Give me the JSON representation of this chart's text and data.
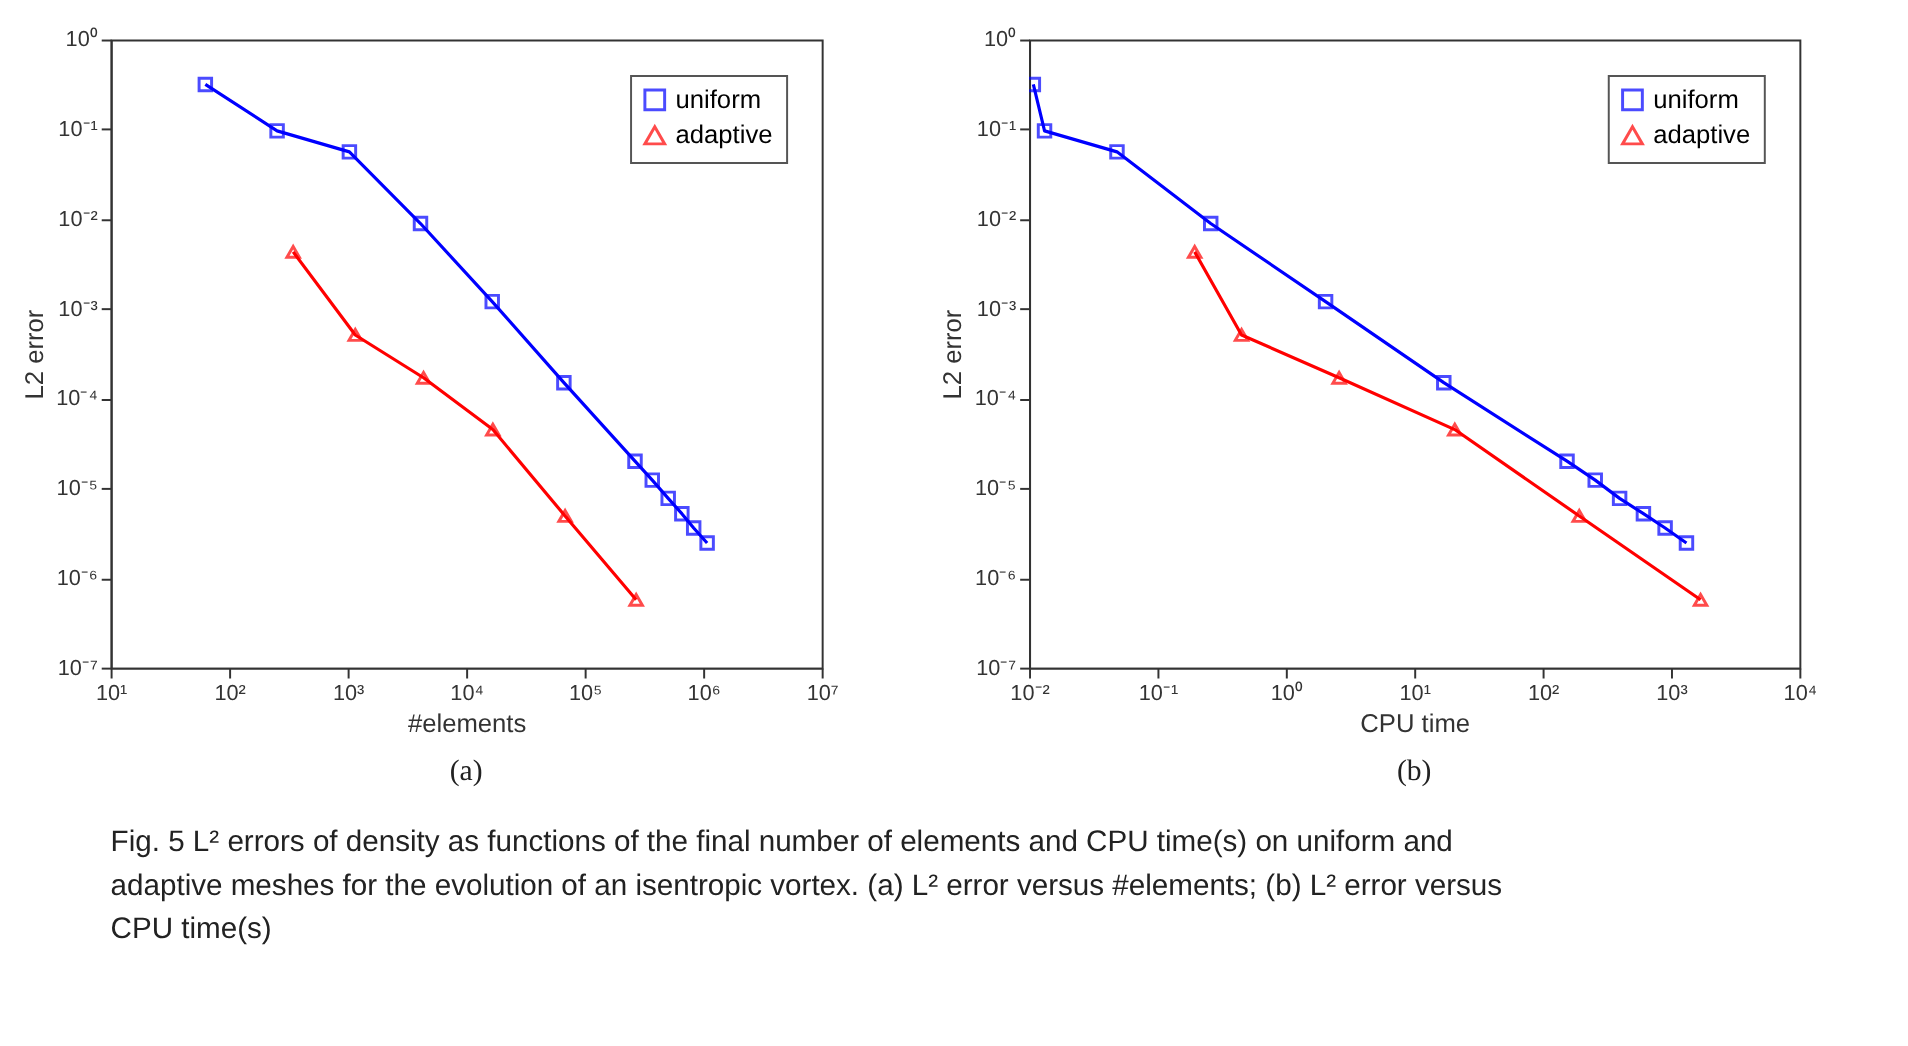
{
  "chart_data": [
    {
      "type": "line",
      "xlabel": "#elements",
      "ylabel": "L2 error",
      "log": "xy",
      "grid": false,
      "legend": "top right",
      "line_style": "solid",
      "xlim": [
        10,
        10000000
      ],
      "ylim": [
        1e-07,
        1
      ],
      "xticks": [
        {
          "value": 10,
          "label": "10¹"
        },
        {
          "value": 100,
          "label": "10²"
        },
        {
          "value": 1000,
          "label": "10³"
        },
        {
          "value": 10000,
          "label": "10⁴"
        },
        {
          "value": 100000,
          "label": "10⁵"
        },
        {
          "value": 1000000,
          "label": "10⁶"
        },
        {
          "value": 10000000,
          "label": "10⁷"
        }
      ],
      "yticks": [
        {
          "value": 1e-07,
          "label": "10⁻⁷"
        },
        {
          "value": 1e-06,
          "label": "10⁻⁶"
        },
        {
          "value": 1e-05,
          "label": "10⁻⁵"
        },
        {
          "value": 0.0001,
          "label": "10⁻⁴"
        },
        {
          "value": 0.001,
          "label": "10⁻³"
        },
        {
          "value": 0.01,
          "label": "10⁻²"
        },
        {
          "value": 0.1,
          "label": "10⁻¹"
        },
        {
          "value": 1,
          "label": "10⁰"
        }
      ],
      "series": [
        {
          "name": "uniform",
          "color": "#0000ff",
          "marker": "square",
          "x": [
            63,
            254,
            1035,
            4120,
            16600,
            66800,
            266000,
            372000,
            507000,
            661000,
            832000,
            1080000
          ],
          "values": [
            0.316,
            0.096,
            0.056,
            0.0089,
            0.0012,
            0.00015,
            2e-05,
            1.23e-05,
            7.7e-06,
            5.2e-06,
            3.6e-06,
            2.45e-06
          ]
        },
        {
          "name": "adaptive",
          "color": "#ff0000",
          "marker": "triangle",
          "x": [
            347,
            1160,
            4370,
            16800,
            68400,
            272000
          ],
          "values": [
            0.0043,
            0.00051,
            0.00017,
            4.5e-05,
            4.9e-06,
            5.7e-07
          ]
        }
      ],
      "annotations": [
        "(a)"
      ]
    },
    {
      "type": "line",
      "xlabel": "CPU time",
      "ylabel": "L2 error",
      "log": "xy",
      "grid": false,
      "legend": "top right",
      "line_style": "solid",
      "xlim": [
        0.01,
        10000
      ],
      "ylim": [
        1e-07,
        1
      ],
      "xticks": [
        {
          "value": 0.01,
          "label": "10⁻²"
        },
        {
          "value": 0.1,
          "label": "10⁻¹"
        },
        {
          "value": 1,
          "label": "10⁰"
        },
        {
          "value": 10,
          "label": "10¹"
        },
        {
          "value": 100,
          "label": "10²"
        },
        {
          "value": 1000,
          "label": "10³"
        },
        {
          "value": 10000,
          "label": "10⁴"
        }
      ],
      "yticks": [
        {
          "value": 1e-07,
          "label": "10⁻⁷"
        },
        {
          "value": 1e-06,
          "label": "10⁻⁶"
        },
        {
          "value": 1e-05,
          "label": "10⁻⁵"
        },
        {
          "value": 0.0001,
          "label": "10⁻⁴"
        },
        {
          "value": 0.001,
          "label": "10⁻³"
        },
        {
          "value": 0.01,
          "label": "10⁻²"
        },
        {
          "value": 0.1,
          "label": "10⁻¹"
        },
        {
          "value": 1,
          "label": "10⁰"
        }
      ],
      "series": [
        {
          "name": "uniform",
          "color": "#0000ff",
          "marker": "square",
          "x": [
            0.0108,
            0.0132,
            0.0484,
            0.26,
            2.04,
            17,
            155,
            257,
            398,
            610,
            900,
            1320
          ],
          "values": [
            0.316,
            0.096,
            0.056,
            0.0089,
            0.0012,
            0.00015,
            2e-05,
            1.23e-05,
            7.7e-06,
            5.2e-06,
            3.6e-06,
            2.45e-06
          ]
        },
        {
          "name": "adaptive",
          "color": "#ff0000",
          "marker": "triangle",
          "x": [
            0.195,
            0.452,
            2.6,
            20.7,
            193,
            1700
          ],
          "values": [
            0.0043,
            0.00051,
            0.00017,
            4.5e-05,
            4.9e-06,
            5.7e-07
          ]
        }
      ],
      "annotations": [
        "(b)",
        "Fig. 5  L² errors of density as functions of the final number of elements and CPU time(s) on uniform and adaptive meshes for the evolution of an isentropic vortex. (a) L² error versus #elements; (b) L² error versus CPU time(s)"
      ]
    }
  ]
}
